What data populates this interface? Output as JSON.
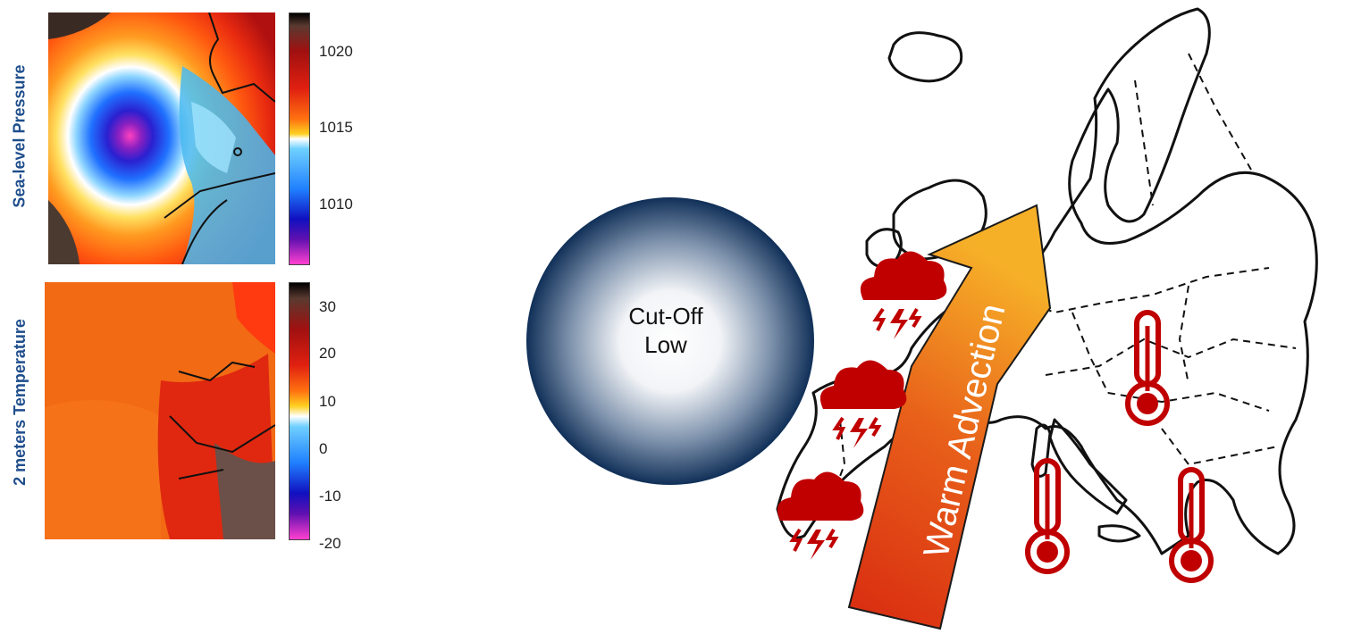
{
  "panels": [
    {
      "label": "Sea-level Pressure",
      "colorbar_ticks": [
        "1020",
        "1015",
        "1010"
      ]
    },
    {
      "label": "2 meters Temperature",
      "colorbar_ticks": [
        "30",
        "20",
        "10",
        "0",
        "-10",
        "-20"
      ]
    }
  ],
  "diagram": {
    "low_label_line1": "Cut-Off",
    "low_label_line2": "Low",
    "arrow_label": "Warm Advection",
    "icons": [
      "storm-cloud-icon",
      "storm-cloud-icon",
      "storm-cloud-icon",
      "thermometer-icon",
      "thermometer-icon",
      "thermometer-icon"
    ]
  },
  "colors": {
    "label_blue": "#1f4e8c",
    "icon_red": "#c00000",
    "low_dark": "#13325a"
  }
}
